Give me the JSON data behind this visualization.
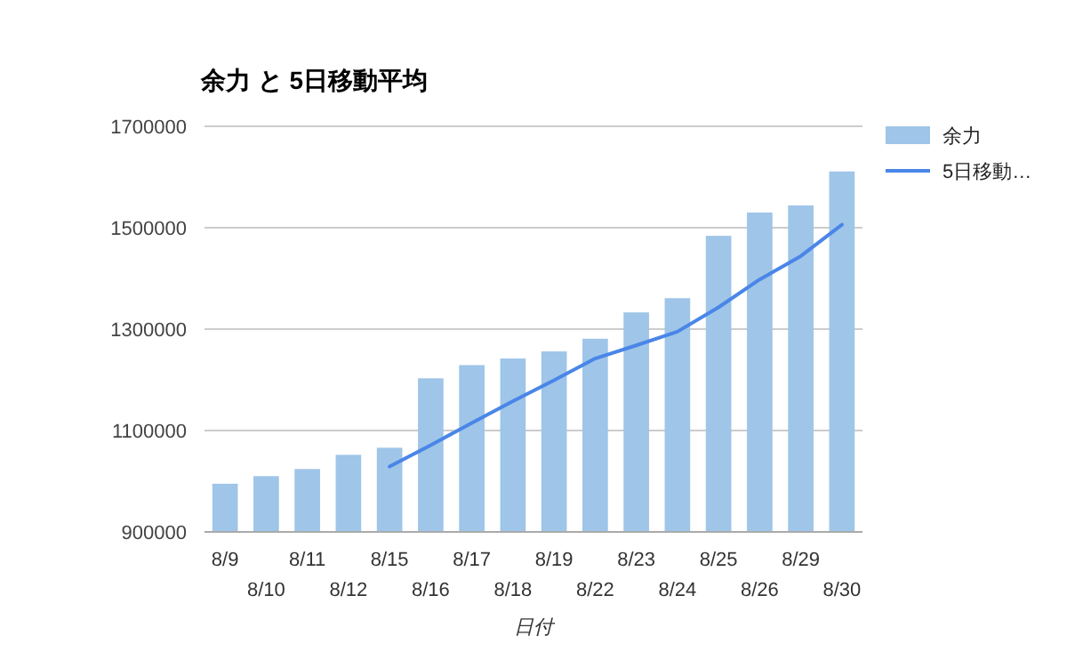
{
  "chart_data": {
    "type": "bar",
    "title": "余力 と 5日移動平均",
    "xlabel": "日付",
    "categories": [
      "8/9",
      "8/10",
      "8/11",
      "8/12",
      "8/15",
      "8/16",
      "8/17",
      "8/18",
      "8/19",
      "8/22",
      "8/23",
      "8/24",
      "8/25",
      "8/26",
      "8/29",
      "8/30"
    ],
    "series": [
      {
        "name": "余力",
        "color": "#9fc5e8",
        "values": [
          995000,
          1010000,
          1024000,
          1052000,
          1066000,
          1203000,
          1229000,
          1242000,
          1256000,
          1281000,
          1333000,
          1361000,
          1484000,
          1530000,
          1544000,
          1611000
        ]
      },
      {
        "name": "5日移動…",
        "type": "line",
        "color": "#4a86e8",
        "values": [
          null,
          null,
          null,
          null,
          1029000,
          1071000,
          1115000,
          1158000,
          1199000,
          1242000,
          1268000,
          1295000,
          1343000,
          1398000,
          1444000,
          1506000
        ]
      }
    ],
    "ylim": [
      900000,
      1700000
    ],
    "yticks": [
      900000,
      1100000,
      1300000,
      1500000,
      1700000
    ],
    "grid": "y",
    "legend": "right"
  }
}
